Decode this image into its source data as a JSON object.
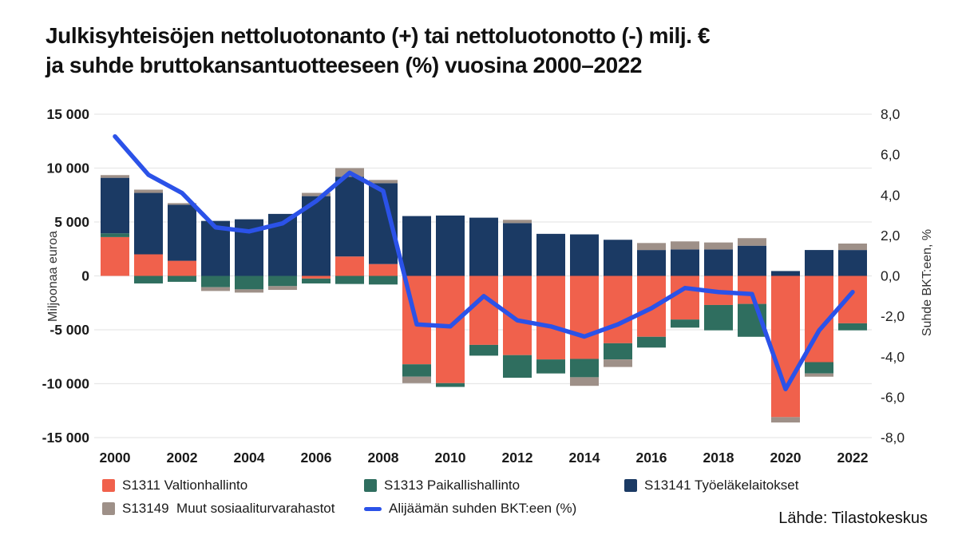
{
  "title": {
    "line1": "Julkisyhteisöjen nettoluotonanto (+) tai nettoluotonotto (-) milj. €",
    "line2": "ja suhde bruttokansantuotteeseen (%) vuosina 2000–2022"
  },
  "source": "Lähde: Tilastokeskus",
  "colors": {
    "orange": "#F0614C",
    "green": "#2F6E5F",
    "navy": "#1B3A64",
    "grey": "#9E9088",
    "line_blue": "#2B52E8",
    "grid": "#E7E7E7",
    "text": "#1A1A1A"
  },
  "axes": {
    "left": {
      "title": "Miljoonaa euroa",
      "ticks": [
        {
          "value": 15000,
          "label": "15 000"
        },
        {
          "value": 10000,
          "label": "10 000"
        },
        {
          "value": 5000,
          "label": "5 000"
        },
        {
          "value": 0,
          "label": "0"
        },
        {
          "value": -5000,
          "label": "-5 000"
        },
        {
          "value": -10000,
          "label": "-10 000"
        },
        {
          "value": -15000,
          "label": "-15 000"
        }
      ]
    },
    "right": {
      "title": "Suhde BKT:een, %",
      "ticks": [
        {
          "value": 8,
          "label": "8,0"
        },
        {
          "value": 6,
          "label": "6,0"
        },
        {
          "value": 4,
          "label": "4,0"
        },
        {
          "value": 2,
          "label": "2,0"
        },
        {
          "value": 0,
          "label": "0,0"
        },
        {
          "value": -2,
          "label": "-2,0"
        },
        {
          "value": -4,
          "label": "-4,0"
        },
        {
          "value": -6,
          "label": "-6,0"
        },
        {
          "value": -8,
          "label": "-8,0"
        }
      ]
    },
    "x": {
      "labels": [
        "2000",
        "2002",
        "2004",
        "2006",
        "2008",
        "2010",
        "2012",
        "2014",
        "2016",
        "2018",
        "2020",
        "2022"
      ],
      "positions": [
        0,
        2,
        4,
        6,
        8,
        10,
        12,
        14,
        16,
        18,
        20,
        22
      ]
    }
  },
  "legend": {
    "items": [
      {
        "label": "S1311 Valtionhallinto",
        "color": "#F0614C",
        "type": "bar"
      },
      {
        "label": "S1313 Paikallishallinto",
        "color": "#2F6E5F",
        "type": "bar"
      },
      {
        "label": "S13141 Työeläkelaitokset",
        "color": "#1B3A64",
        "type": "bar"
      },
      {
        "label": "S13149  Muut sosiaaliturvarahastot",
        "color": "#9E9088",
        "type": "bar"
      },
      {
        "label": "Alijäämän suhden BKT:een (%)",
        "color": "#2B52E8",
        "type": "line"
      }
    ]
  },
  "chart_data": {
    "type": "bar+line",
    "title": "Julkisyhteisöjen nettoluotonanto (+) tai nettoluotonotto (-) milj. € ja suhde bruttokansantuotteeseen (%) vuosina 2000–2022",
    "categories": [
      2000,
      2001,
      2002,
      2003,
      2004,
      2005,
      2006,
      2007,
      2008,
      2009,
      2010,
      2011,
      2012,
      2013,
      2014,
      2015,
      2016,
      2017,
      2018,
      2019,
      2020,
      2021,
      2022
    ],
    "bar_axis": {
      "title": "Miljoonaa euroa",
      "range": [
        -15000,
        15000
      ],
      "tick_step": 5000,
      "grid": true
    },
    "line_axis": {
      "title": "Suhde BKT:een, %",
      "range": [
        -8,
        8
      ],
      "tick_step": 2
    },
    "legend_position": "bottom",
    "series": [
      {
        "name": "S1311 Valtionhallinto",
        "type": "bar",
        "color": "#F0614C",
        "values": [
          3600,
          2000,
          1400,
          0,
          0,
          0,
          -250,
          1800,
          1100,
          -8200,
          -9950,
          -6400,
          -7350,
          -7750,
          -7700,
          -6250,
          -5650,
          -4050,
          -2700,
          -2600,
          -13100,
          -8000,
          -4400
        ]
      },
      {
        "name": "S1313 Paikallishallinto",
        "type": "bar",
        "color": "#2F6E5F",
        "values": [
          350,
          -700,
          -550,
          -1050,
          -1250,
          -950,
          -450,
          -750,
          -800,
          -1150,
          -350,
          -1000,
          -2100,
          -1300,
          -1700,
          -1500,
          -1000,
          -750,
          -2350,
          -3050,
          0,
          -1050,
          -650
        ]
      },
      {
        "name": "S13141 Työeläkelaitokset",
        "type": "bar",
        "color": "#1B3A64",
        "values": [
          5150,
          5700,
          5200,
          5100,
          5250,
          5750,
          7400,
          7400,
          7500,
          5550,
          5600,
          5400,
          4900,
          3900,
          3850,
          3350,
          2400,
          2450,
          2450,
          2800,
          450,
          2400,
          2400
        ]
      },
      {
        "name": "S13149 Muut sosiaaliturvarahastot",
        "type": "bar",
        "color": "#9E9088",
        "values": [
          250,
          300,
          150,
          -350,
          -300,
          -350,
          300,
          800,
          300,
          -600,
          0,
          0,
          300,
          0,
          -800,
          -700,
          650,
          750,
          650,
          700,
          -500,
          -300,
          600
        ]
      },
      {
        "name": "Alijäämän suhden BKT:een (%)",
        "type": "line",
        "color": "#2B52E8",
        "values": [
          6.9,
          5.0,
          4.1,
          2.4,
          2.2,
          2.6,
          3.7,
          5.1,
          4.2,
          -2.4,
          -2.5,
          -1.0,
          -2.2,
          -2.5,
          -3.0,
          -2.4,
          -1.6,
          -0.6,
          -0.8,
          -0.9,
          -5.6,
          -2.7,
          -0.8
        ]
      }
    ]
  }
}
